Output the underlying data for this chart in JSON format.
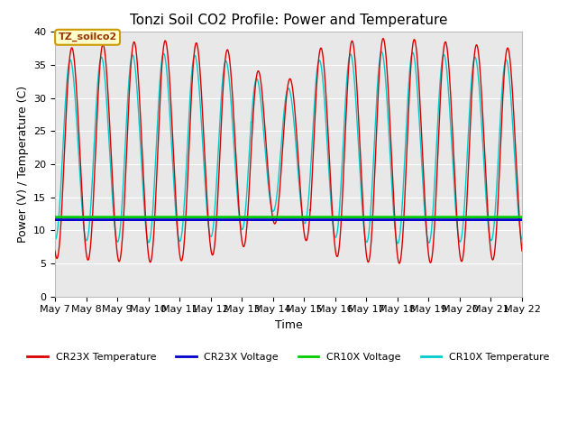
{
  "title": "Tonzi Soil CO2 Profile: Power and Temperature",
  "xlabel": "Time",
  "ylabel": "Power (V) / Temperature (C)",
  "ylim": [
    0,
    40
  ],
  "yticks": [
    0,
    5,
    10,
    15,
    20,
    25,
    30,
    35,
    40
  ],
  "xlim_start": 7,
  "xlim_end": 22,
  "xtick_labels": [
    "May 7",
    "May 8",
    "May 9",
    "May 10",
    "May 11",
    "May 12",
    "May 13",
    "May 14",
    "May 15",
    "May 16",
    "May 17",
    "May 18",
    "May 19",
    "May 20",
    "May 21",
    "May 22"
  ],
  "cr23x_voltage_value": 11.6,
  "cr10x_voltage_value": 12.0,
  "legend_labels": [
    "CR23X Temperature",
    "CR23X Voltage",
    "CR10X Voltage",
    "CR10X Temperature"
  ],
  "legend_colors": [
    "#dd0000",
    "#0000cc",
    "#00cc00",
    "#00cccc"
  ],
  "annotation_text": "TZ_soilco2",
  "annotation_color": "#993300",
  "annotation_bg": "#ffffcc",
  "annotation_border": "#cc9900",
  "background_color": "#e8e8e8",
  "fig_background": "#ffffff",
  "title_fontsize": 11,
  "axis_label_fontsize": 9,
  "tick_fontsize": 8,
  "grid_color": "#ffffff",
  "grid_linewidth": 0.8
}
